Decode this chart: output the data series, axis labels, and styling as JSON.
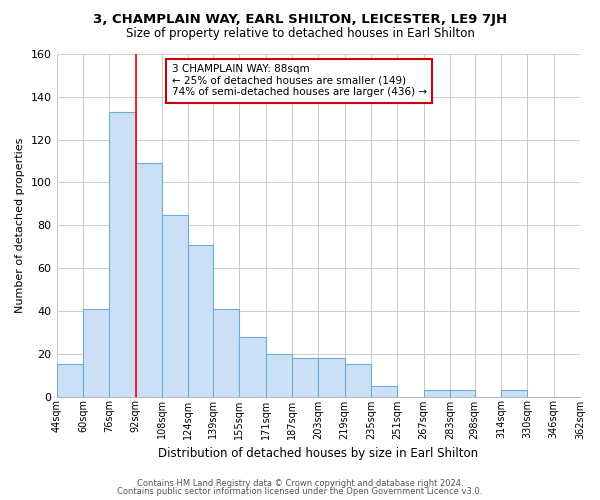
{
  "title": "3, CHAMPLAIN WAY, EARL SHILTON, LEICESTER, LE9 7JH",
  "subtitle": "Size of property relative to detached houses in Earl Shilton",
  "xlabel": "Distribution of detached houses by size in Earl Shilton",
  "ylabel": "Number of detached properties",
  "bar_color": "#cce0f5",
  "bar_edge_color": "#6aaed6",
  "bin_labels": [
    "44sqm",
    "60sqm",
    "76sqm",
    "92sqm",
    "108sqm",
    "124sqm",
    "139sqm",
    "155sqm",
    "171sqm",
    "187sqm",
    "203sqm",
    "219sqm",
    "235sqm",
    "251sqm",
    "267sqm",
    "283sqm",
    "298sqm",
    "314sqm",
    "330sqm",
    "346sqm",
    "362sqm"
  ],
  "bar_heights": [
    15,
    41,
    133,
    109,
    85,
    71,
    41,
    28,
    20,
    18,
    18,
    15,
    5,
    0,
    3,
    3,
    0,
    3,
    0,
    0,
    0
  ],
  "ylim": [
    0,
    160
  ],
  "yticks": [
    0,
    20,
    40,
    60,
    80,
    100,
    120,
    140,
    160
  ],
  "red_line_x": 92,
  "bin_edges_sqm": [
    44,
    60,
    76,
    92,
    108,
    124,
    139,
    155,
    171,
    187,
    203,
    219,
    235,
    251,
    267,
    283,
    298,
    314,
    330,
    346,
    362
  ],
  "annotation_title": "3 CHAMPLAIN WAY: 88sqm",
  "annotation_line1": "← 25% of detached houses are smaller (149)",
  "annotation_line2": "74% of semi-detached houses are larger (436) →",
  "annotation_box_color": "#ffffff",
  "annotation_box_edge": "#cc0000",
  "footer1": "Contains HM Land Registry data © Crown copyright and database right 2024.",
  "footer2": "Contains public sector information licensed under the Open Government Licence v3.0.",
  "background_color": "#ffffff",
  "grid_color": "#cccccc"
}
